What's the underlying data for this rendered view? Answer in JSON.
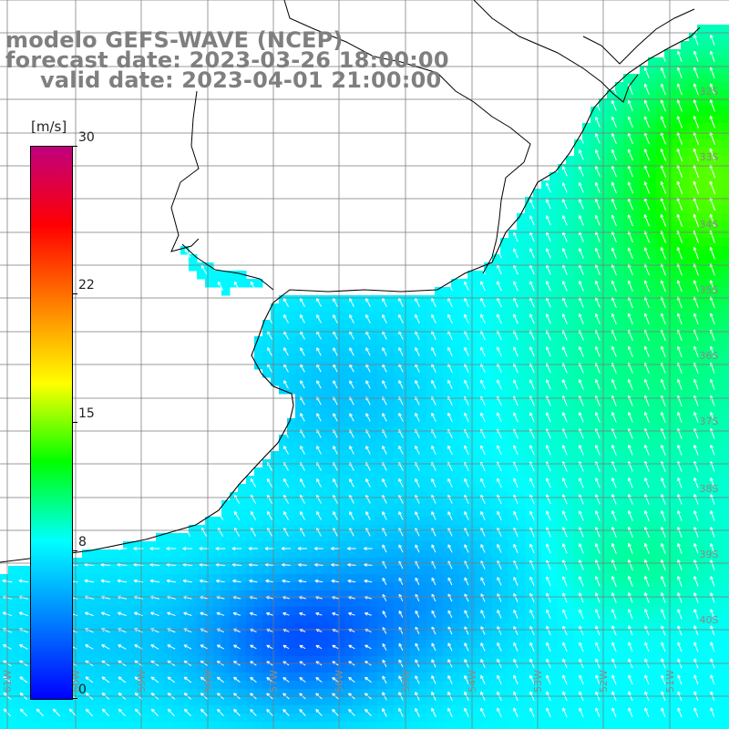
{
  "title": {
    "model": "modelo GEFS-WAVE (NCEP)",
    "forecast": "forecast date: 2023-03-26 18:00:00",
    "valid": "valid date: 2023-04-01 21:00:00"
  },
  "colorbar": {
    "unit": "[m/s]",
    "ticks": [
      {
        "label": "30",
        "value": 30
      },
      {
        "label": "22",
        "value": 22
      },
      {
        "label": "15",
        "value": 15
      },
      {
        "label": "8",
        "value": 8
      },
      {
        "label": "0",
        "value": 0
      }
    ],
    "stops": [
      "#0000ff",
      "#0080ff",
      "#00ffff",
      "#00ff00",
      "#ffff00",
      "#ff8000",
      "#ff0000",
      "#c0007f"
    ],
    "range": [
      0,
      30
    ]
  },
  "grid": {
    "lat_labels": [
      "32S",
      "33S",
      "34S",
      "35S",
      "36S",
      "37S",
      "38S",
      "39S",
      "40S"
    ],
    "lon_labels": [
      "61W",
      "60W",
      "59W",
      "58W",
      "57W",
      "56W",
      "55W",
      "54W",
      "53W",
      "52W",
      "51W"
    ]
  },
  "colors": {
    "land": "#ffffff",
    "grid": "#7a7a7a",
    "coast": "#000000",
    "arrow": "#ffffff",
    "title": "#7f7f7f"
  }
}
